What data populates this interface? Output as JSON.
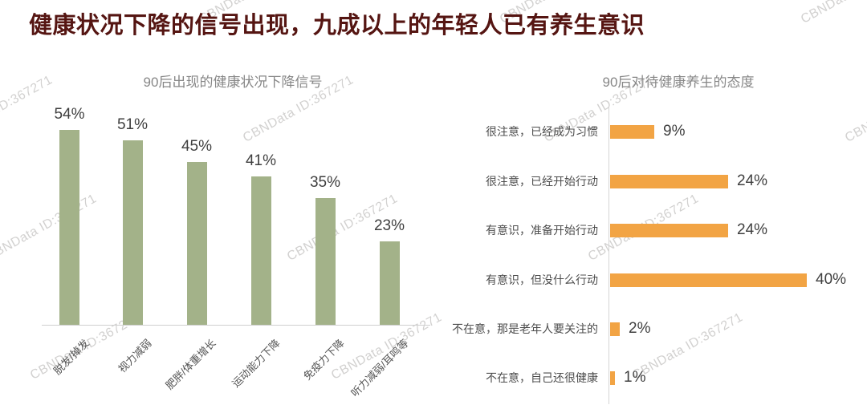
{
  "page_title": "健康状况下降的信号出现，九成以上的年轻人已有养生意识",
  "watermark_text": "CBNData ID:367271",
  "colors": {
    "title": "#551512",
    "chart_title": "#878787",
    "green_bar": "#a3b289",
    "orange_bar": "#f2a444",
    "value_label": "#3f3f3f",
    "category_label": "#555555",
    "axis_line": "#cfcfcf",
    "watermark": "#d2d1d0"
  },
  "chart_data": [
    {
      "type": "bar",
      "orientation": "vertical",
      "title": "90后出现的健康状况下降信号",
      "categories": [
        "脱发/掉发",
        "视力减弱",
        "肥胖/体重增长",
        "运动能力下降",
        "免疫力下降",
        "听力减弱/耳鸣等"
      ],
      "values": [
        54,
        51,
        45,
        41,
        35,
        23
      ],
      "unit": "%",
      "data_labels": [
        "54%",
        "51%",
        "45%",
        "41%",
        "35%",
        "23%"
      ],
      "bar_color": "#a3b289",
      "value_axis_visible": false,
      "grid": false,
      "legend": "none",
      "category_labels_rotated_deg": 45
    },
    {
      "type": "bar",
      "orientation": "horizontal",
      "title": "90后对待健康养生的态度",
      "categories": [
        "很注意，已经成为习惯",
        "很注意，已经开始行动",
        "有意识，准备开始行动",
        "有意识，但没什么行动",
        "不在意，那是老年人要关注的",
        "不在意，自己还很健康"
      ],
      "values": [
        9,
        24,
        24,
        40,
        2,
        1
      ],
      "unit": "%",
      "data_labels": [
        "9%",
        "24%",
        "24%",
        "40%",
        "2%",
        "1%"
      ],
      "bar_color": "#f2a444",
      "value_axis_visible": false,
      "grid": false,
      "legend": "none"
    }
  ]
}
